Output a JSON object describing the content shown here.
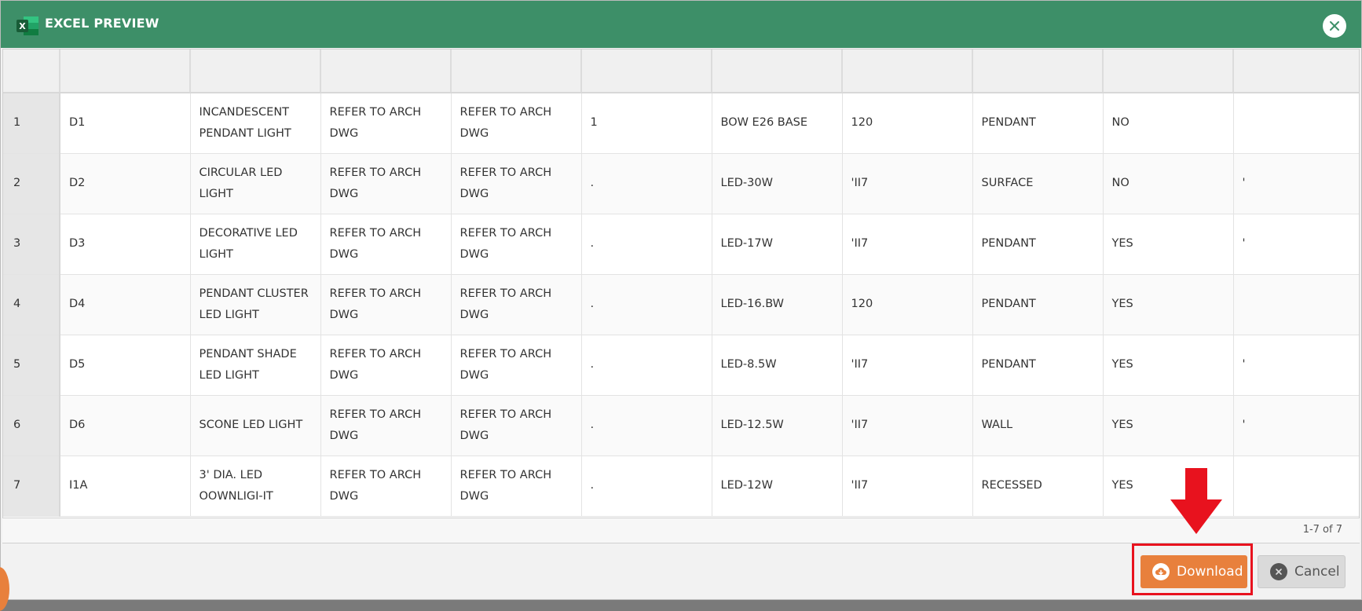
{
  "modal": {
    "title": "EXCEL PREVIEW"
  },
  "table": {
    "rows": [
      {
        "num": "1",
        "cells": [
          "D1",
          "INCANDESCENT PENDANT LIGHT",
          "REFER TO ARCH DWG",
          "REFER TO ARCH DWG",
          "1",
          "BOW E26 BASE",
          "120",
          "PENDANT",
          "NO",
          ""
        ]
      },
      {
        "num": "2",
        "cells": [
          "D2",
          "CIRCULAR LED LIGHT",
          "REFER TO ARCH DWG",
          "REFER TO ARCH DWG",
          ".",
          "LED-30W",
          "'II7",
          "SURFACE",
          "NO",
          "'"
        ]
      },
      {
        "num": "3",
        "cells": [
          "D3",
          "DECORATIVE LED LIGHT",
          "REFER TO ARCH DWG",
          "REFER TO ARCH DWG",
          ".",
          "LED-17W",
          "'II7",
          "PENDANT",
          "YES",
          "'"
        ]
      },
      {
        "num": "4",
        "cells": [
          "D4",
          "PENDANT CLUSTER LED LIGHT",
          "REFER TO ARCH DWG",
          "REFER TO ARCH DWG",
          ".",
          "LED-16.BW",
          "120",
          "PENDANT",
          "YES",
          ""
        ]
      },
      {
        "num": "5",
        "cells": [
          "D5",
          "PENDANT SHADE LED LIGHT",
          "REFER TO ARCH DWG",
          "REFER TO ARCH DWG",
          ".",
          "LED-8.5W",
          "'II7",
          "PENDANT",
          "YES",
          "'"
        ]
      },
      {
        "num": "6",
        "cells": [
          "D6",
          "SCONE LED LIGHT",
          "REFER TO ARCH DWG",
          "REFER TO ARCH DWG",
          ".",
          "LED-12.5W",
          "'II7",
          "WALL",
          "YES",
          "'"
        ]
      },
      {
        "num": "7",
        "cells": [
          "I1A",
          "3' DIA. LED OOWNLIGI-IT",
          "REFER TO ARCH DWG",
          "REFER TO ARCH DWG",
          ".",
          "LED-12W",
          "'II7",
          "RECESSED",
          "YES",
          ""
        ]
      }
    ]
  },
  "footer": {
    "pager": "1-7 of 7"
  },
  "buttons": {
    "download": "Download",
    "cancel": "Cancel"
  },
  "colors": {
    "header": "#3d8f68",
    "download": "#e8803c",
    "highlight": "#e8121e"
  },
  "icons": {
    "app": "excel-icon",
    "close": "close-icon",
    "download": "cloud-download-icon",
    "cancel": "x-circle-icon",
    "annotation": "down-arrow-icon"
  }
}
